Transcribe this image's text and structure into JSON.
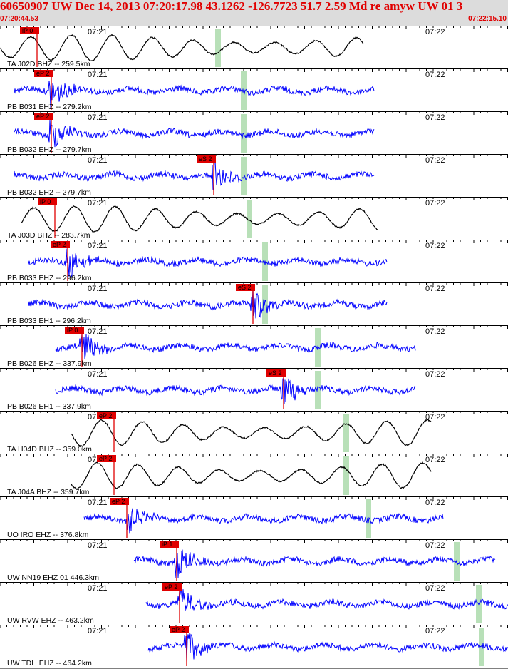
{
  "header": {
    "title": "60650907 UW Dec 14, 2013 07:20:17.98   43.1262 -126.7723 51.7 2.59 Md re amyw UW 01   3",
    "start_time": "07:20:44.53",
    "end_time": "07:22:15.10"
  },
  "tick_labels": {
    "left": "07:21",
    "right": "07:22"
  },
  "colors": {
    "accent_red": "#e00000",
    "trace_blue": "#0000ff",
    "trace_black": "#000000",
    "marker_green": "#b8e0b8",
    "header_bg": "#dcdcdc"
  },
  "traces": [
    {
      "label": "TA J02D BHZ -- 259.5km",
      "pick": "iP 0",
      "type": "lp",
      "color": "black"
    },
    {
      "label": "PB B031 EHZ -- 279.2km",
      "pick": "eP 2",
      "type": "sp",
      "color": "blue"
    },
    {
      "label": "PB B032 EHZ -- 279.7km",
      "pick": "eP 2",
      "type": "sp",
      "color": "blue"
    },
    {
      "label": "PB B032 EH2 -- 279.7km",
      "pick": "eS 2",
      "type": "sp",
      "color": "blue"
    },
    {
      "label": "TA J03D BHZ -- 283.7km",
      "pick": "iP 0",
      "type": "lp",
      "color": "black"
    },
    {
      "label": "PB B033 EHZ -- 296.2km",
      "pick": "eP 2",
      "type": "sp",
      "color": "blue"
    },
    {
      "label": "PB B033 EH1 -- 296.2km",
      "pick": "eS 2",
      "type": "sp",
      "color": "blue"
    },
    {
      "label": "PB B026 EHZ -- 337.9km",
      "pick": "iP 0",
      "type": "sp",
      "color": "blue"
    },
    {
      "label": "PB B026 EH1 -- 337.9km",
      "pick": "eS 2",
      "type": "sp",
      "color": "blue"
    },
    {
      "label": "TA H04D BHZ -- 359.0km",
      "pick": "eP 2",
      "type": "lp",
      "color": "black"
    },
    {
      "label": "TA J04A BHZ -- 359.7km",
      "pick": "eP 2",
      "type": "lp",
      "color": "black"
    },
    {
      "label": "UO IRO EHZ -- 376.8km",
      "pick": "eP 2",
      "type": "sp",
      "color": "blue"
    },
    {
      "label": "UW NN19 EHZ 01 446.3km",
      "pick": "iP 1",
      "type": "sp",
      "color": "blue"
    },
    {
      "label": "UW RVW EHZ -- 463.2km",
      "pick": "eP 2",
      "type": "sp",
      "color": "blue"
    },
    {
      "label": "UW TDH EHZ -- 464.2km",
      "pick": "eP 2",
      "type": "sp",
      "color": "blue"
    }
  ]
}
